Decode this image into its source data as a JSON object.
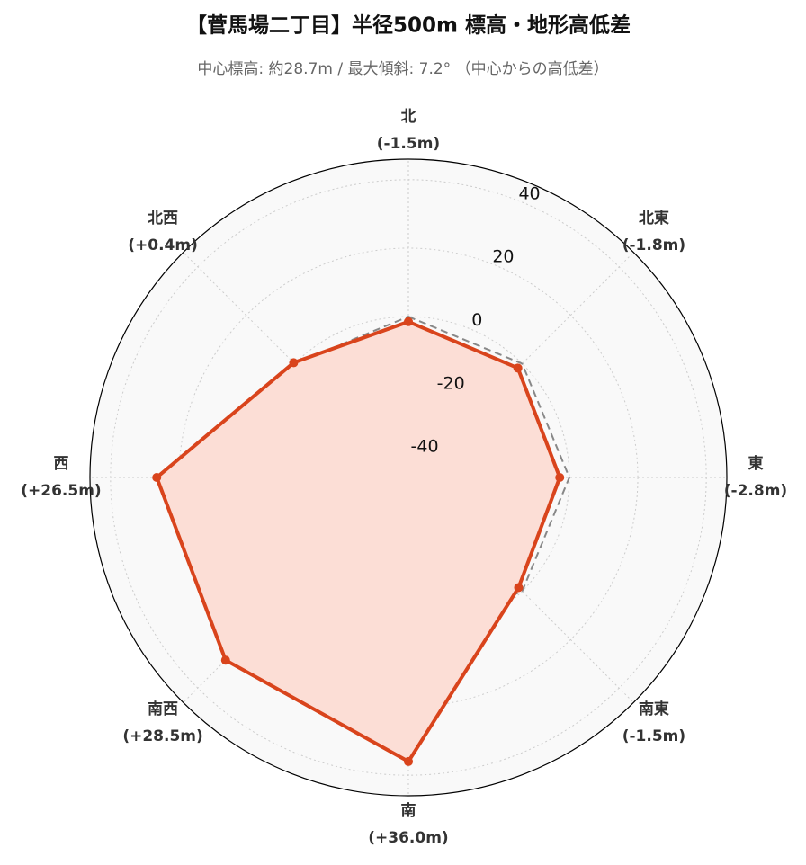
{
  "chart_data": {
    "type": "radar",
    "title": "【菅馬場二丁目】半径500m 標高・地形高低差",
    "subtitle": "中心標高: 約28.7m / 最大傾斜: 7.2° （中心からの高低差）",
    "categories": [
      "北",
      "北東",
      "東",
      "南東",
      "南",
      "南西",
      "西",
      "北西"
    ],
    "series": [
      {
        "color": "#888888",
        "linestyle": "dashed",
        "values": [
          0,
          0,
          0,
          0,
          0,
          0,
          0,
          0
        ]
      },
      {
        "color": "#d9441c",
        "fill": "#fcded6",
        "linestyle": "solid",
        "values": [
          -1.5,
          -1.8,
          -2.8,
          -1.5,
          36.0,
          28.5,
          26.5,
          0.4
        ],
        "value_labels": [
          "(-1.5m)",
          "(-1.8m)",
          "(-2.8m)",
          "(-1.5m)",
          "(+36.0m)",
          "(+28.5m)",
          "(+26.5m)",
          "(+0.4m)"
        ]
      }
    ],
    "ylim": [
      -47,
      46
    ],
    "yticks": [
      -40,
      -20,
      0,
      20,
      40
    ],
    "grid": true
  }
}
